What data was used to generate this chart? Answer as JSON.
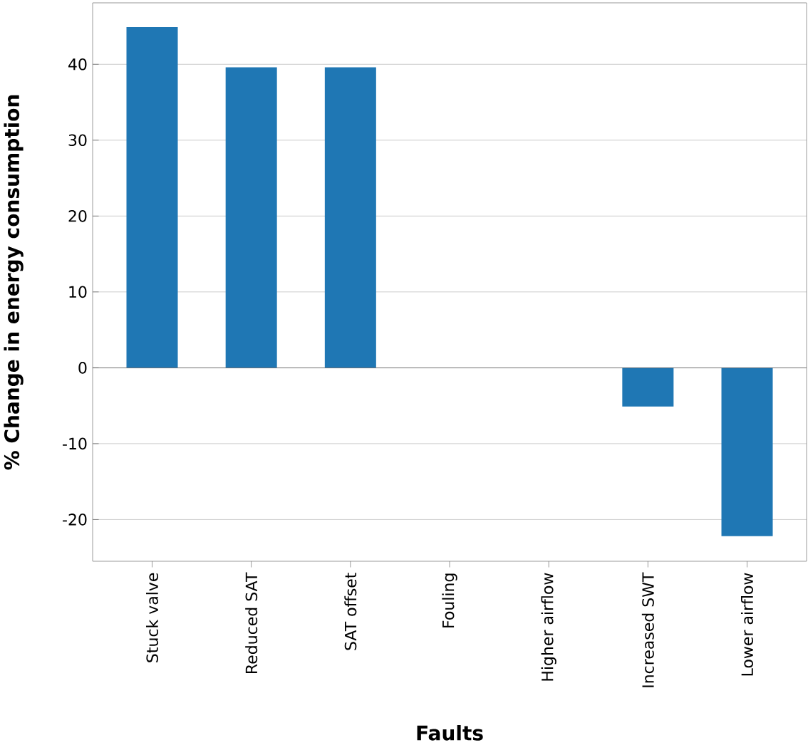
{
  "chart_data": {
    "type": "bar",
    "xlabel": "Faults",
    "ylabel": "% Change in energy consumption",
    "categories": [
      "Stuck valve",
      "Reduced SAT",
      "SAT offset",
      "Fouling",
      "Higher airflow",
      "Increased SWT",
      "Lower airflow"
    ],
    "values": [
      44.9,
      39.6,
      39.6,
      0,
      0,
      -5.1,
      -22.2
    ],
    "color": "#1f77b4",
    "ylim": [
      -25.5,
      48.1
    ],
    "yticks": [
      -20,
      -10,
      0,
      10,
      20,
      30,
      40
    ],
    "grid": "y"
  }
}
